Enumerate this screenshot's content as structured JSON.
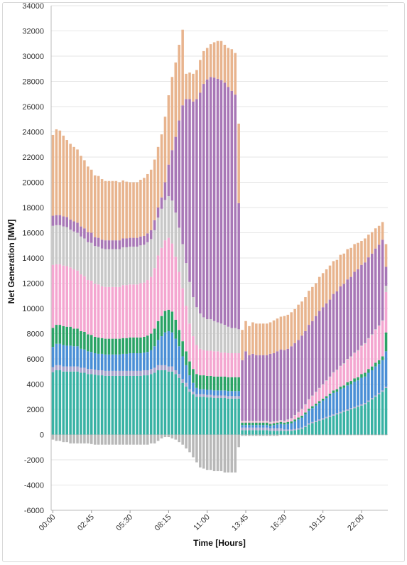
{
  "chart_data": {
    "type": "bar",
    "stacked": true,
    "xlabel": "Time [Hours]",
    "ylabel": "Net Generation [MW]",
    "ylim": [
      -6000,
      34000
    ],
    "y_ticks": [
      "34000",
      "32000",
      "30000",
      "28000",
      "26000",
      "24000",
      "22000",
      "20000",
      "18000",
      "16000",
      "14000",
      "12000",
      "10000",
      "8000",
      "6000",
      "4000",
      "2000",
      "0",
      "-2000",
      "-4000",
      "-6000"
    ],
    "x_ticks": [
      {
        "label": "00:00",
        "index": 0
      },
      {
        "label": "02:45",
        "index": 11
      },
      {
        "label": "05:30",
        "index": 22
      },
      {
        "label": "08:15",
        "index": 33
      },
      {
        "label": "11:00",
        "index": 44
      },
      {
        "label": "13:45",
        "index": 55
      },
      {
        "label": "16:30",
        "index": 66
      },
      {
        "label": "19:15",
        "index": 77
      },
      {
        "label": "22:00",
        "index": 88
      }
    ],
    "interval_minutes": 15,
    "bar_count": 96,
    "grid": true,
    "legend": "none",
    "series_colors": [
      "#38b2a4",
      "#a9a3cc",
      "#4a8fd6",
      "#2aa366",
      "#f4a6d0",
      "#c8c8c8",
      "#a877b6",
      "#e8b48e"
    ],
    "negative_color": "#b8b8b8",
    "categories": [
      "00:00",
      "00:15",
      "00:30",
      "00:45",
      "01:00",
      "01:15",
      "01:30",
      "01:45",
      "02:00",
      "02:15",
      "02:30",
      "02:45",
      "03:00",
      "03:15",
      "03:30",
      "03:45",
      "04:00",
      "04:15",
      "04:30",
      "04:45",
      "05:00",
      "05:15",
      "05:30",
      "05:45",
      "06:00",
      "06:15",
      "06:30",
      "06:45",
      "07:00",
      "07:15",
      "07:30",
      "07:45",
      "08:00",
      "08:15",
      "08:30",
      "08:45",
      "09:00",
      "09:15",
      "09:30",
      "09:45",
      "10:00",
      "10:15",
      "10:30",
      "10:45",
      "11:00",
      "11:15",
      "11:30",
      "11:45",
      "12:00",
      "12:15",
      "12:30",
      "12:45",
      "13:00",
      "13:15",
      "13:30",
      "13:45",
      "14:00",
      "14:15",
      "14:30",
      "14:45",
      "15:00",
      "15:15",
      "15:30",
      "15:45",
      "16:00",
      "16:15",
      "16:30",
      "16:45",
      "17:00",
      "17:15",
      "17:30",
      "17:45",
      "18:00",
      "18:15",
      "18:30",
      "18:45",
      "19:00",
      "19:15",
      "19:30",
      "19:45",
      "20:00",
      "20:15",
      "20:30",
      "20:45",
      "21:00",
      "21:15",
      "21:30",
      "21:45",
      "22:00",
      "22:15",
      "22:30",
      "22:45",
      "23:00",
      "23:15",
      "23:30",
      "23:45"
    ],
    "series": [
      {
        "values": [
          4950,
          5100,
          5100,
          5000,
          5000,
          5000,
          5000,
          5000,
          4900,
          4900,
          4800,
          4800,
          4750,
          4700,
          4700,
          4650,
          4650,
          4650,
          4650,
          4650,
          4650,
          4650,
          4650,
          4650,
          4650,
          4650,
          4700,
          4700,
          4800,
          4900,
          5100,
          5100,
          5100,
          5000,
          5000,
          4800,
          4500,
          4100,
          3800,
          3400,
          3200,
          3000,
          3000,
          3000,
          2950,
          2950,
          2900,
          2900,
          2900,
          2900,
          2850,
          2850,
          2850,
          2850,
          350,
          350,
          350,
          350,
          350,
          350,
          350,
          350,
          300,
          300,
          300,
          300,
          300,
          300,
          300,
          350,
          400,
          450,
          600,
          800,
          900,
          1000,
          1100,
          1200,
          1300,
          1400,
          1500,
          1600,
          1700,
          1800,
          1900,
          2000,
          2100,
          2200,
          2300,
          2400,
          2600,
          2800,
          3000,
          3200,
          3400,
          3700
        ]
      },
      {
        "values": [
          400,
          400,
          400,
          400,
          400,
          400,
          400,
          400,
          400,
          400,
          400,
          400,
          400,
          400,
          400,
          400,
          400,
          400,
          400,
          400,
          400,
          400,
          400,
          400,
          400,
          400,
          400,
          400,
          400,
          400,
          400,
          400,
          400,
          400,
          400,
          300,
          300,
          300,
          300,
          200,
          200,
          200,
          200,
          200,
          200,
          200,
          200,
          200,
          200,
          200,
          200,
          200,
          200,
          200,
          200,
          200,
          200,
          200,
          200,
          200,
          200,
          200,
          200,
          200,
          200,
          200,
          100,
          100,
          100,
          100,
          100,
          100,
          100,
          100,
          100,
          100,
          100,
          100,
          100,
          100,
          100,
          100,
          100,
          100,
          100,
          100,
          100,
          100,
          100,
          100,
          100,
          100,
          100,
          100,
          100,
          100
        ]
      },
      {
        "values": [
          1600,
          1700,
          1700,
          1700,
          1650,
          1650,
          1600,
          1600,
          1500,
          1450,
          1400,
          1350,
          1300,
          1300,
          1300,
          1300,
          1300,
          1300,
          1300,
          1300,
          1350,
          1350,
          1400,
          1400,
          1400,
          1400,
          1400,
          1450,
          1500,
          1700,
          2000,
          2300,
          2600,
          2800,
          2700,
          2500,
          2200,
          1800,
          1400,
          1100,
          700,
          500,
          400,
          400,
          400,
          400,
          400,
          400,
          400,
          400,
          400,
          400,
          400,
          400,
          200,
          200,
          200,
          200,
          200,
          200,
          200,
          200,
          200,
          250,
          300,
          350,
          400,
          450,
          500,
          600,
          700,
          800,
          900,
          1000,
          1100,
          1200,
          1300,
          1400,
          1500,
          1600,
          1700,
          1700,
          1800,
          1800,
          1900,
          1900,
          2000,
          2000,
          2100,
          2100,
          2200,
          2200,
          2300,
          2300,
          2400,
          2800
        ]
      },
      {
        "values": [
          1500,
          1500,
          1500,
          1500,
          1500,
          1500,
          1400,
          1400,
          1400,
          1400,
          1350,
          1350,
          1300,
          1300,
          1250,
          1250,
          1250,
          1250,
          1250,
          1250,
          1250,
          1250,
          1250,
          1250,
          1250,
          1250,
          1250,
          1300,
          1300,
          1400,
          1500,
          1600,
          1700,
          1700,
          1650,
          1500,
          1300,
          1200,
          1100,
          1100,
          1100,
          1100,
          1100,
          1100,
          1100,
          1100,
          1100,
          1100,
          1100,
          1100,
          1100,
          1100,
          1100,
          1100,
          200,
          200,
          200,
          200,
          200,
          200,
          200,
          200,
          150,
          150,
          150,
          150,
          150,
          150,
          150,
          150,
          150,
          150,
          150,
          150,
          150,
          150,
          150,
          150,
          150,
          150,
          200,
          200,
          200,
          200,
          250,
          250,
          250,
          250,
          300,
          300,
          300,
          300,
          300,
          300,
          300,
          1500
        ]
      },
      {
        "values": [
          5000,
          4800,
          4800,
          4800,
          4800,
          4700,
          4700,
          4600,
          4500,
          4400,
          4300,
          4300,
          4200,
          4200,
          4100,
          4100,
          4100,
          4100,
          4100,
          4100,
          4200,
          4200,
          4200,
          4200,
          4200,
          4300,
          4300,
          4400,
          4500,
          4800,
          5200,
          5400,
          5600,
          5700,
          5400,
          5000,
          4600,
          4200,
          3600,
          3000,
          2600,
          2300,
          2100,
          2000,
          2000,
          2000,
          2000,
          2000,
          1900,
          1900,
          1900,
          1900,
          1900,
          1900,
          100,
          100,
          100,
          100,
          100,
          100,
          100,
          100,
          100,
          100,
          100,
          100,
          100,
          150,
          200,
          300,
          400,
          500,
          600,
          700,
          800,
          900,
          1000,
          1100,
          1200,
          1300,
          1400,
          1500,
          1600,
          1700,
          1800,
          1900,
          2000,
          2100,
          2200,
          2300,
          2400,
          2500,
          2600,
          2700,
          2800,
          3200
        ]
      },
      {
        "values": [
          3100,
          3100,
          3100,
          3100,
          3100,
          3000,
          3000,
          3000,
          3000,
          3000,
          3000,
          3000,
          3000,
          3000,
          3000,
          3000,
          3000,
          3000,
          3000,
          3000,
          3000,
          3000,
          3000,
          3000,
          3000,
          3000,
          3000,
          3000,
          3000,
          3000,
          3000,
          3100,
          3200,
          3300,
          3400,
          3500,
          3500,
          3500,
          3400,
          3300,
          3100,
          3000,
          2800,
          2600,
          2500,
          2500,
          2400,
          2300,
          2300,
          2200,
          2100,
          2000,
          2000,
          1900,
          50,
          50,
          50,
          50,
          50,
          50,
          50,
          50,
          50,
          50,
          50,
          50,
          50,
          50,
          50,
          50,
          50,
          50,
          50,
          50,
          50,
          50,
          50,
          50,
          50,
          50,
          50,
          50,
          50,
          50,
          50,
          50,
          50,
          50,
          50,
          50,
          50,
          50,
          50,
          50,
          50,
          500
        ]
      },
      {
        "values": [
          800,
          800,
          800,
          800,
          800,
          800,
          800,
          800,
          800,
          800,
          800,
          800,
          700,
          700,
          700,
          700,
          700,
          700,
          700,
          700,
          700,
          700,
          700,
          700,
          700,
          700,
          700,
          700,
          700,
          800,
          800,
          900,
          1400,
          2500,
          4000,
          6000,
          8500,
          11000,
          13000,
          14500,
          15500,
          16500,
          17500,
          18500,
          19000,
          19200,
          19300,
          19300,
          19300,
          19200,
          19000,
          18800,
          18500,
          10000,
          4800,
          5500,
          5200,
          5300,
          5200,
          5200,
          5200,
          5200,
          5400,
          5400,
          5500,
          5600,
          5600,
          5600,
          5700,
          5700,
          5700,
          5800,
          5800,
          5900,
          5900,
          6000,
          6100,
          6100,
          6100,
          6100,
          6200,
          6200,
          6300,
          6300,
          6300,
          6300,
          6400,
          6400,
          6400,
          6400,
          6400,
          6400,
          6400,
          6400,
          6400,
          1500
        ]
      },
      {
        "values": [
          6400,
          6800,
          6700,
          6400,
          6100,
          6000,
          5900,
          5800,
          5600,
          5400,
          5200,
          5000,
          4900,
          4900,
          4800,
          4700,
          4700,
          4700,
          4700,
          4600,
          4600,
          4500,
          4400,
          4400,
          4400,
          4500,
          4600,
          4700,
          4800,
          4800,
          4800,
          5000,
          5200,
          5500,
          5800,
          5900,
          6000,
          6000,
          2000,
          2100,
          2200,
          2300,
          2600,
          2600,
          2500,
          2600,
          2800,
          3000,
          3100,
          3000,
          3100,
          3300,
          3300,
          6300,
          2400,
          2400,
          2300,
          2500,
          2500,
          2500,
          2500,
          2500,
          2500,
          2600,
          2600,
          2600,
          2700,
          2700,
          2700,
          2700,
          2800,
          2700,
          2700,
          2700,
          2700,
          2600,
          2700,
          2700,
          2700,
          2700,
          2600,
          2500,
          2500,
          2400,
          2400,
          2300,
          2200,
          2100,
          1900,
          1900,
          1800,
          1700,
          1600,
          1500,
          1400,
          1800
        ]
      }
    ],
    "negative_values": [
      -400,
      -500,
      -500,
      -600,
      -600,
      -700,
      -700,
      -700,
      -700,
      -700,
      -700,
      -750,
      -800,
      -800,
      -800,
      -800,
      -800,
      -800,
      -800,
      -800,
      -800,
      -800,
      -800,
      -800,
      -800,
      -800,
      -800,
      -800,
      -700,
      -700,
      -500,
      -300,
      -200,
      -200,
      -300,
      -400,
      -600,
      -800,
      -1100,
      -1400,
      -1800,
      -2200,
      -2600,
      -2700,
      -2800,
      -2800,
      -2900,
      -2900,
      -2900,
      -3000,
      -3000,
      -3000,
      -3000,
      -1000,
      -100,
      -100,
      -100,
      -100,
      -100,
      -100,
      -100,
      -100,
      -100,
      -100,
      -100,
      -50,
      -50,
      -50,
      -50,
      -50,
      -50,
      -50,
      -50,
      -50,
      -50,
      -50,
      -50,
      -50,
      -50,
      -50,
      -50,
      -50,
      -50,
      -50,
      -50,
      -50,
      -50,
      -50,
      -50,
      -50,
      -50,
      -50,
      -50,
      -50,
      -50,
      -50
    ]
  }
}
